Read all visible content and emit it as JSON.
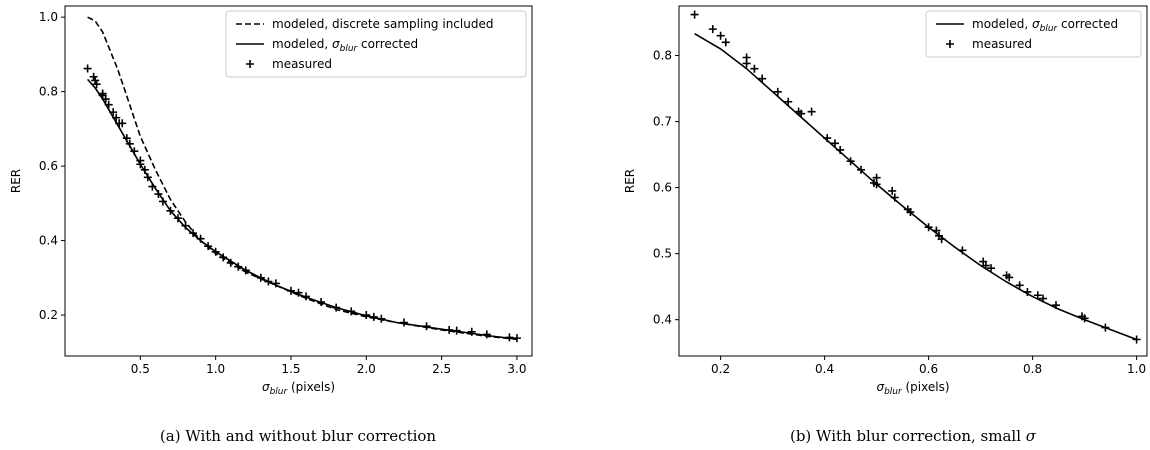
{
  "chart_data": [
    {
      "type": "line",
      "caption": "(a) With and without blur correction",
      "xlabel": "σ_blur (pixels)",
      "ylabel": "RER",
      "xlim": [
        0.0,
        3.1
      ],
      "ylim": [
        0.09,
        1.03
      ],
      "xticks": [
        "0.5",
        "1.0",
        "1.5",
        "2.0",
        "2.5",
        "3.0"
      ],
      "yticks": [
        "0.2",
        "0.4",
        "0.6",
        "0.8",
        "1.0"
      ],
      "legend_position": "top-right",
      "legend": [
        {
          "label": "modeled, discrete sampling included",
          "style": "dashed"
        },
        {
          "label": "modeled, σ_blur corrected",
          "style": "solid"
        },
        {
          "label": "measured",
          "style": "plus-marker"
        }
      ],
      "series": [
        {
          "name": "modeled, discrete sampling included",
          "style": "dashed",
          "x": [
            0.15,
            0.2,
            0.25,
            0.3,
            0.35,
            0.4,
            0.45,
            0.5,
            0.6,
            0.7,
            0.8,
            0.9,
            1.0,
            1.2,
            1.4,
            1.6,
            1.8,
            2.0,
            2.2,
            2.5,
            2.8,
            3.0
          ],
          "y": [
            1.0,
            0.99,
            0.96,
            0.91,
            0.86,
            0.8,
            0.74,
            0.68,
            0.59,
            0.51,
            0.45,
            0.4,
            0.365,
            0.315,
            0.28,
            0.245,
            0.215,
            0.195,
            0.18,
            0.16,
            0.143,
            0.135
          ]
        },
        {
          "name": "modeled, σ_blur corrected",
          "style": "solid",
          "x": [
            0.15,
            0.2,
            0.25,
            0.3,
            0.35,
            0.4,
            0.45,
            0.5,
            0.6,
            0.7,
            0.8,
            0.9,
            1.0,
            1.2,
            1.4,
            1.6,
            1.8,
            2.0,
            2.2,
            2.5,
            2.8,
            3.0
          ],
          "y": [
            0.833,
            0.81,
            0.78,
            0.745,
            0.71,
            0.675,
            0.64,
            0.605,
            0.54,
            0.48,
            0.435,
            0.4,
            0.37,
            0.32,
            0.28,
            0.248,
            0.22,
            0.198,
            0.18,
            0.162,
            0.145,
            0.135
          ]
        },
        {
          "name": "measured",
          "style": "plus",
          "x": [
            0.15,
            0.19,
            0.2,
            0.21,
            0.25,
            0.25,
            0.27,
            0.29,
            0.32,
            0.34,
            0.36,
            0.38,
            0.41,
            0.43,
            0.46,
            0.5,
            0.5,
            0.53,
            0.55,
            0.58,
            0.62,
            0.65,
            0.7,
            0.75,
            0.8,
            0.85,
            0.9,
            0.95,
            1.0,
            1.05,
            1.1,
            1.15,
            1.2,
            1.3,
            1.35,
            1.4,
            1.5,
            1.55,
            1.6,
            1.7,
            1.8,
            1.9,
            2.0,
            2.05,
            2.1,
            2.25,
            2.4,
            2.55,
            2.6,
            2.7,
            2.8,
            2.95,
            3.0
          ],
          "y": [
            0.862,
            0.84,
            0.83,
            0.82,
            0.795,
            0.79,
            0.78,
            0.765,
            0.745,
            0.73,
            0.715,
            0.715,
            0.675,
            0.66,
            0.64,
            0.615,
            0.605,
            0.59,
            0.57,
            0.545,
            0.525,
            0.505,
            0.48,
            0.46,
            0.44,
            0.42,
            0.405,
            0.385,
            0.37,
            0.355,
            0.34,
            0.33,
            0.32,
            0.3,
            0.29,
            0.285,
            0.265,
            0.26,
            0.25,
            0.235,
            0.22,
            0.21,
            0.2,
            0.195,
            0.19,
            0.18,
            0.17,
            0.16,
            0.158,
            0.155,
            0.148,
            0.14,
            0.138
          ]
        }
      ]
    },
    {
      "type": "line",
      "caption": "(b) With blur correction, small σ",
      "xlabel": "σ_blur (pixels)",
      "ylabel": "RER",
      "xlim": [
        0.12,
        1.02
      ],
      "ylim": [
        0.345,
        0.875
      ],
      "xticks": [
        "0.2",
        "0.4",
        "0.6",
        "0.8",
        "1.0"
      ],
      "yticks": [
        "0.4",
        "0.5",
        "0.6",
        "0.7",
        "0.8"
      ],
      "legend_position": "top-right",
      "legend": [
        {
          "label": "modeled, σ_blur corrected",
          "style": "solid"
        },
        {
          "label": "measured",
          "style": "plus-marker"
        }
      ],
      "series": [
        {
          "name": "modeled, σ_blur corrected",
          "style": "solid",
          "x": [
            0.15,
            0.2,
            0.25,
            0.3,
            0.35,
            0.4,
            0.45,
            0.5,
            0.55,
            0.6,
            0.65,
            0.7,
            0.75,
            0.8,
            0.85,
            0.9,
            0.95,
            1.0
          ],
          "y": [
            0.833,
            0.81,
            0.78,
            0.745,
            0.71,
            0.675,
            0.64,
            0.605,
            0.572,
            0.54,
            0.51,
            0.482,
            0.457,
            0.435,
            0.416,
            0.4,
            0.385,
            0.37
          ]
        },
        {
          "name": "measured",
          "style": "plus",
          "x": [
            0.15,
            0.185,
            0.2,
            0.21,
            0.25,
            0.25,
            0.265,
            0.28,
            0.31,
            0.33,
            0.35,
            0.355,
            0.375,
            0.405,
            0.42,
            0.43,
            0.45,
            0.47,
            0.495,
            0.5,
            0.5,
            0.53,
            0.535,
            0.56,
            0.565,
            0.6,
            0.615,
            0.62,
            0.625,
            0.665,
            0.705,
            0.71,
            0.72,
            0.75,
            0.755,
            0.775,
            0.79,
            0.81,
            0.82,
            0.845,
            0.895,
            0.9,
            0.94,
            1.0
          ],
          "y": [
            0.862,
            0.84,
            0.83,
            0.82,
            0.797,
            0.788,
            0.78,
            0.765,
            0.745,
            0.73,
            0.715,
            0.712,
            0.715,
            0.675,
            0.667,
            0.657,
            0.64,
            0.627,
            0.607,
            0.615,
            0.605,
            0.595,
            0.585,
            0.567,
            0.563,
            0.54,
            0.535,
            0.527,
            0.522,
            0.505,
            0.488,
            0.482,
            0.478,
            0.467,
            0.464,
            0.452,
            0.442,
            0.437,
            0.432,
            0.422,
            0.405,
            0.402,
            0.388,
            0.37
          ]
        }
      ]
    }
  ]
}
